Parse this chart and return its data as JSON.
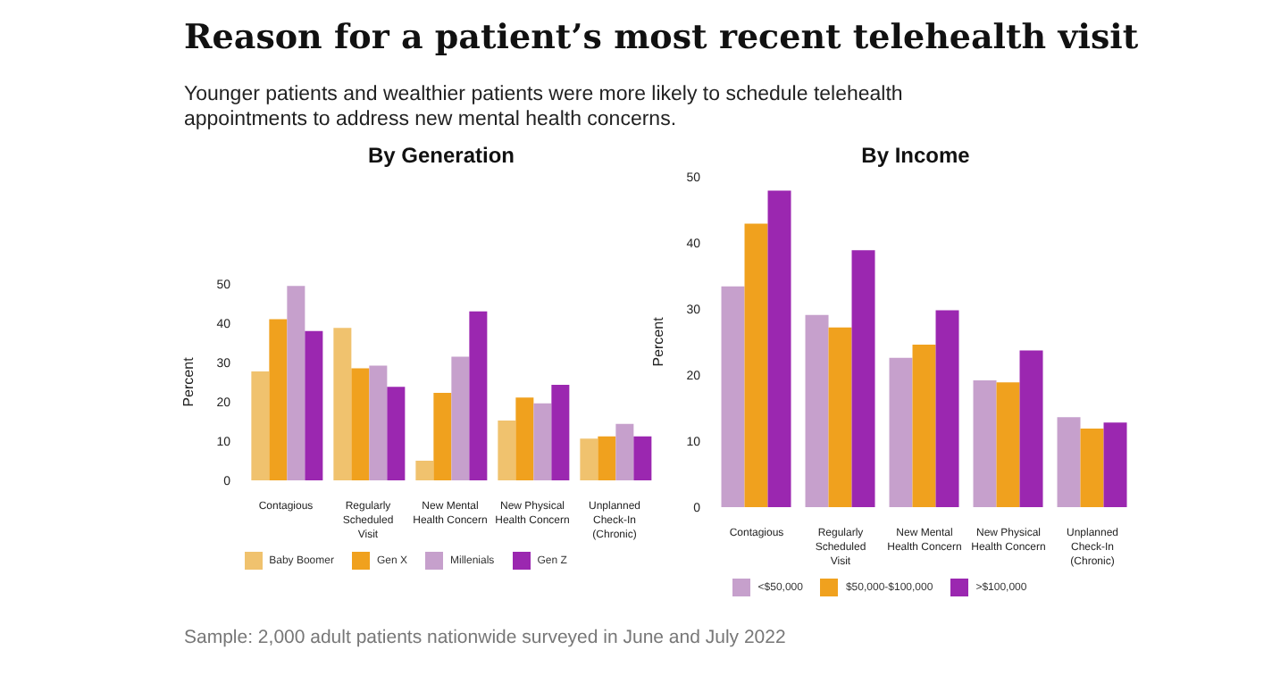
{
  "chart_data": [
    {
      "type": "bar",
      "title": "By Generation",
      "ylabel": "Percent",
      "annotations": [
        "Reason for a patient’s most recent telehealth visit",
        "Younger patients and wealthier patients were more likely to schedule telehealth appointments to address new mental health concerns.",
        "Sample: 2,000 adult patients nationwide surveyed in June and July 2022"
      ],
      "categories": [
        "Contagious",
        "Regularly Scheduled Visit",
        "New Mental Health Concern",
        "New Physical Health Concern",
        "Unplanned Check-In (Chronic)"
      ],
      "series": [
        {
          "name": "Baby Boomer",
          "color": "#f0c26e",
          "values": [
            27.7,
            38.8,
            5,
            15.2,
            10.6
          ]
        },
        {
          "name": "Gen X",
          "color": "#f0a11e",
          "values": [
            41,
            28.5,
            22.3,
            21.1,
            11.2
          ]
        },
        {
          "name": "Millenials",
          "color": "#c6a0cc",
          "values": [
            49.5,
            29.2,
            31.5,
            19.6,
            14.4
          ]
        },
        {
          "name": "Gen Z",
          "color": "#9b27b0",
          "values": [
            38,
            23.8,
            43,
            24.3,
            11.2
          ]
        }
      ],
      "ylim": [
        0,
        50
      ],
      "yticks": [
        0,
        10,
        20,
        30,
        40,
        50
      ],
      "legend": "bottom"
    },
    {
      "type": "bar",
      "title": "By Income",
      "ylabel": "Percent",
      "categories": [
        "Contagious",
        "Regularly Scheduled Visit",
        "New Mental Health Concern",
        "New Physical Health Concern",
        "Unplanned Check-In (Chronic)"
      ],
      "series": [
        {
          "name": "<$50,000",
          "color": "#c6a0cc",
          "values": [
            33.4,
            29.1,
            22.6,
            19.2,
            13.6
          ]
        },
        {
          "name": "$50,000-$100,000",
          "color": "#f0a11e",
          "values": [
            42.9,
            27.2,
            24.6,
            18.9,
            11.9
          ]
        },
        {
          "name": ">$100,000",
          "color": "#9b27b0",
          "values": [
            47.9,
            38.9,
            29.8,
            23.7,
            12.8
          ]
        }
      ],
      "ylim": [
        0,
        50
      ],
      "yticks": [
        0,
        10,
        20,
        30,
        40,
        50
      ],
      "legend": "bottom"
    }
  ]
}
